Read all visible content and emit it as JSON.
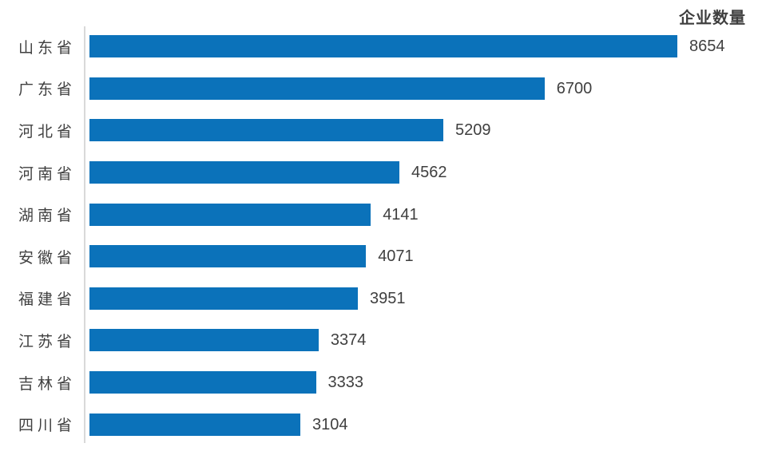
{
  "colors": {
    "bar": "#0b72ba",
    "axis_line": "#d9d9d9",
    "text": "#3f3f3f",
    "background": "#ffffff"
  },
  "chart_data": {
    "type": "bar",
    "orientation": "horizontal",
    "title": "企业数量",
    "xlabel": "",
    "ylabel": "",
    "categories": [
      "山东省",
      "广东省",
      "河北省",
      "河南省",
      "湖南省",
      "安徽省",
      "福建省",
      "江苏省",
      "吉林省",
      "四川省"
    ],
    "values": [
      8654,
      6700,
      5209,
      4562,
      4141,
      4071,
      3951,
      3374,
      3333,
      3104
    ],
    "axis_max": 8654,
    "xlim": [
      0,
      8654
    ],
    "grid": false,
    "legend": null,
    "value_labels_shown": true,
    "sort_order": "descending"
  }
}
